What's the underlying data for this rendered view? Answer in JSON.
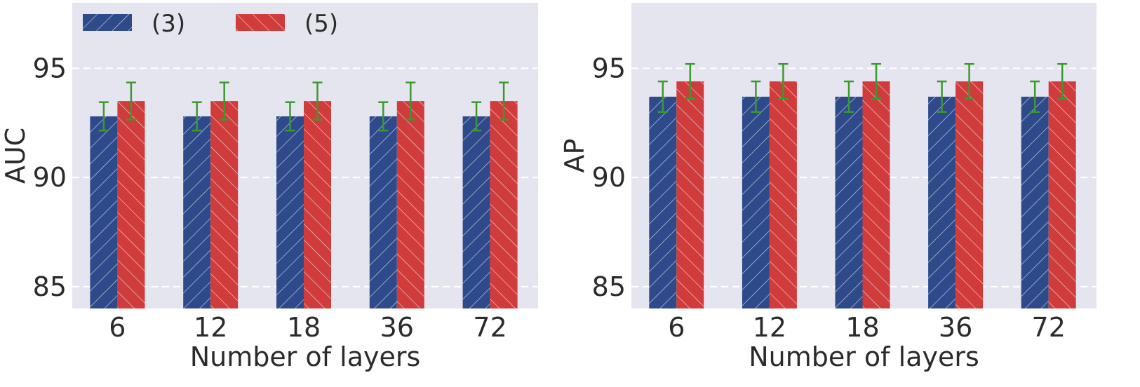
{
  "colors": {
    "series_0": "#2e4a8b",
    "series_1": "#d03b3b",
    "error_bar": "#3a9a2e",
    "panel_bg": "#e5e5ef",
    "grid": "#ffffff"
  },
  "legend": {
    "placement": "top-left",
    "entries": [
      "(3)",
      "(5)"
    ]
  },
  "chart_data": [
    {
      "type": "bar",
      "title": "",
      "xlabel": "Number of layers",
      "ylabel": "AUC",
      "categories": [
        "6",
        "12",
        "18",
        "36",
        "72"
      ],
      "yticks": [
        "85",
        "90",
        "95"
      ],
      "ylim": [
        84,
        98
      ],
      "grid": true,
      "series": [
        {
          "name": "(3)",
          "values": [
            92.8,
            92.8,
            92.8,
            92.8,
            92.8
          ],
          "error": [
            0.65,
            0.65,
            0.65,
            0.65,
            0.65
          ],
          "hatch": "/"
        },
        {
          "name": "(5)",
          "values": [
            93.5,
            93.5,
            93.5,
            93.5,
            93.5
          ],
          "error": [
            0.85,
            0.85,
            0.85,
            0.85,
            0.85
          ],
          "hatch": "\\"
        }
      ]
    },
    {
      "type": "bar",
      "title": "",
      "xlabel": "Number of layers",
      "ylabel": "AP",
      "categories": [
        "6",
        "12",
        "18",
        "36",
        "72"
      ],
      "yticks": [
        "85",
        "90",
        "95"
      ],
      "ylim": [
        84,
        98
      ],
      "grid": true,
      "series": [
        {
          "name": "(3)",
          "values": [
            93.7,
            93.7,
            93.7,
            93.7,
            93.7
          ],
          "error": [
            0.7,
            0.7,
            0.7,
            0.7,
            0.7
          ],
          "hatch": "/"
        },
        {
          "name": "(5)",
          "values": [
            94.4,
            94.4,
            94.4,
            94.4,
            94.4
          ],
          "error": [
            0.8,
            0.8,
            0.8,
            0.8,
            0.8
          ],
          "hatch": "\\"
        }
      ]
    }
  ]
}
